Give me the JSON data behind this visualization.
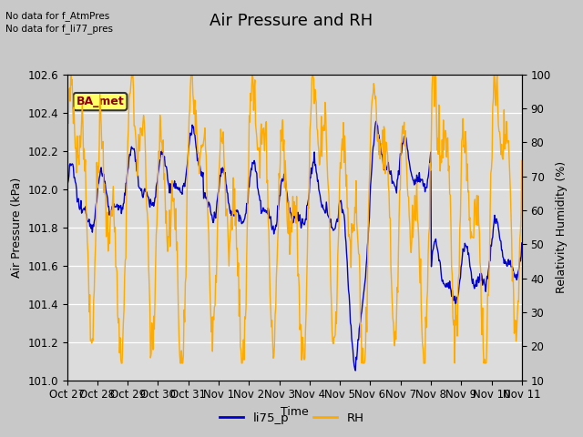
{
  "title": "Air Pressure and RH",
  "xlabel": "Time",
  "ylabel_left": "Air Pressure (kPa)",
  "ylabel_right": "Relativity Humidity (%)",
  "ylim_left": [
    101.0,
    102.6
  ],
  "ylim_right": [
    10,
    100
  ],
  "yticks_left": [
    101.0,
    101.2,
    101.4,
    101.6,
    101.8,
    102.0,
    102.2,
    102.4,
    102.6
  ],
  "yticks_right": [
    10,
    20,
    30,
    40,
    50,
    60,
    70,
    80,
    90,
    100
  ],
  "xtick_labels": [
    "Oct 27",
    "Oct 28",
    "Oct 29",
    "Oct 30",
    "Oct 31",
    "Nov 1",
    "Nov 2",
    "Nov 3",
    "Nov 4",
    "Nov 5",
    "Nov 6",
    "Nov 7",
    "Nov 8",
    "Nov 9",
    "Nov 10",
    "Nov 11"
  ],
  "no_data_text1": "No data for f_AtmPres",
  "no_data_text2": "No data for f_li77_pres",
  "ba_met_label": "BA_met",
  "line1_label": "li75_p",
  "line2_label": "RH",
  "line1_color": "#0000cc",
  "line2_color": "#ffaa00",
  "fig_facecolor": "#c8c8c8",
  "plot_bg_color": "#dcdcdc",
  "title_fontsize": 13,
  "label_fontsize": 9,
  "tick_fontsize": 8.5
}
